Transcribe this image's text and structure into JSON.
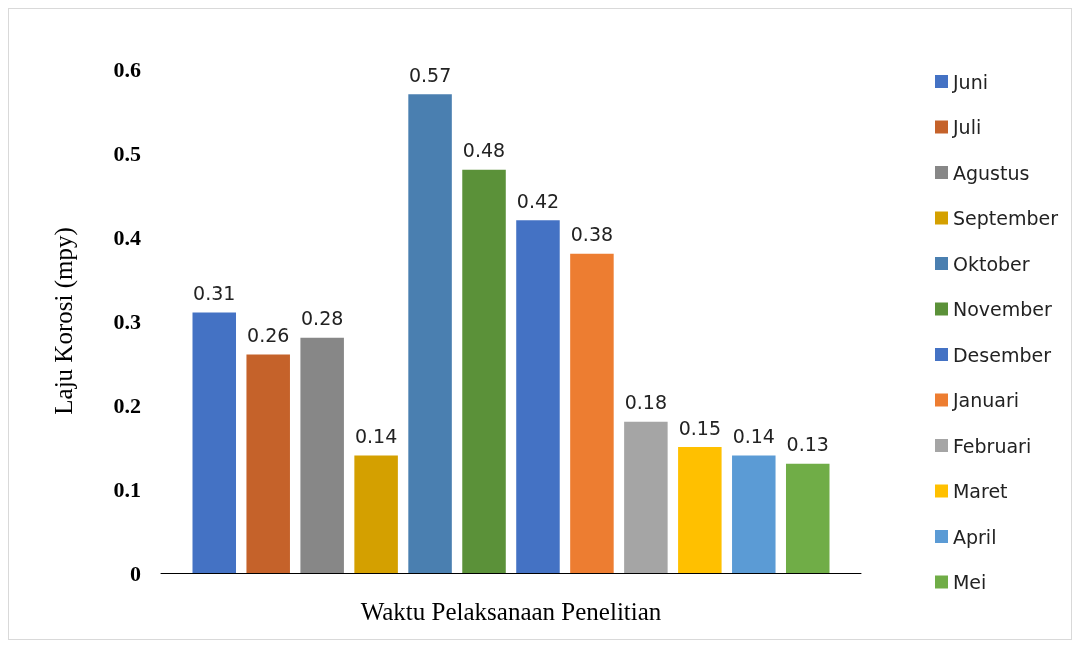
{
  "chart_data": {
    "type": "bar",
    "xlabel": "Waktu Pelaksanaan Penelitian",
    "ylabel": "Laju Korosi (mpy)",
    "categories": [
      null
    ],
    "series": [
      {
        "name": "Juni",
        "color": "#4472c4",
        "values": [
          0.31
        ]
      },
      {
        "name": "Juli",
        "color": "#c5622a",
        "values": [
          0.26
        ]
      },
      {
        "name": "Agustus",
        "color": "#878787",
        "values": [
          0.28
        ]
      },
      {
        "name": "September",
        "color": "#d4a000",
        "values": [
          0.14
        ]
      },
      {
        "name": "Oktober",
        "color": "#4a7fb0",
        "values": [
          0.57
        ]
      },
      {
        "name": "November",
        "color": "#5b9139",
        "values": [
          0.48
        ]
      },
      {
        "name": "Desember",
        "color": "#4472c4",
        "values": [
          0.42
        ]
      },
      {
        "name": "Januari",
        "color": "#ed7d31",
        "values": [
          0.38
        ]
      },
      {
        "name": "Februari",
        "color": "#a5a5a5",
        "values": [
          0.18
        ]
      },
      {
        "name": "Maret",
        "color": "#ffc000",
        "values": [
          0.15
        ]
      },
      {
        "name": "April",
        "color": "#5b9bd5",
        "values": [
          0.14
        ]
      },
      {
        "name": "Mei",
        "color": "#70ad47",
        "values": [
          0.13
        ]
      }
    ],
    "ylim": [
      0,
      0.6
    ],
    "yticks": [
      0,
      0.1,
      0.2,
      0.3,
      0.4,
      0.5,
      0.6
    ],
    "data_labels": true,
    "legend": "right",
    "grid": false
  }
}
